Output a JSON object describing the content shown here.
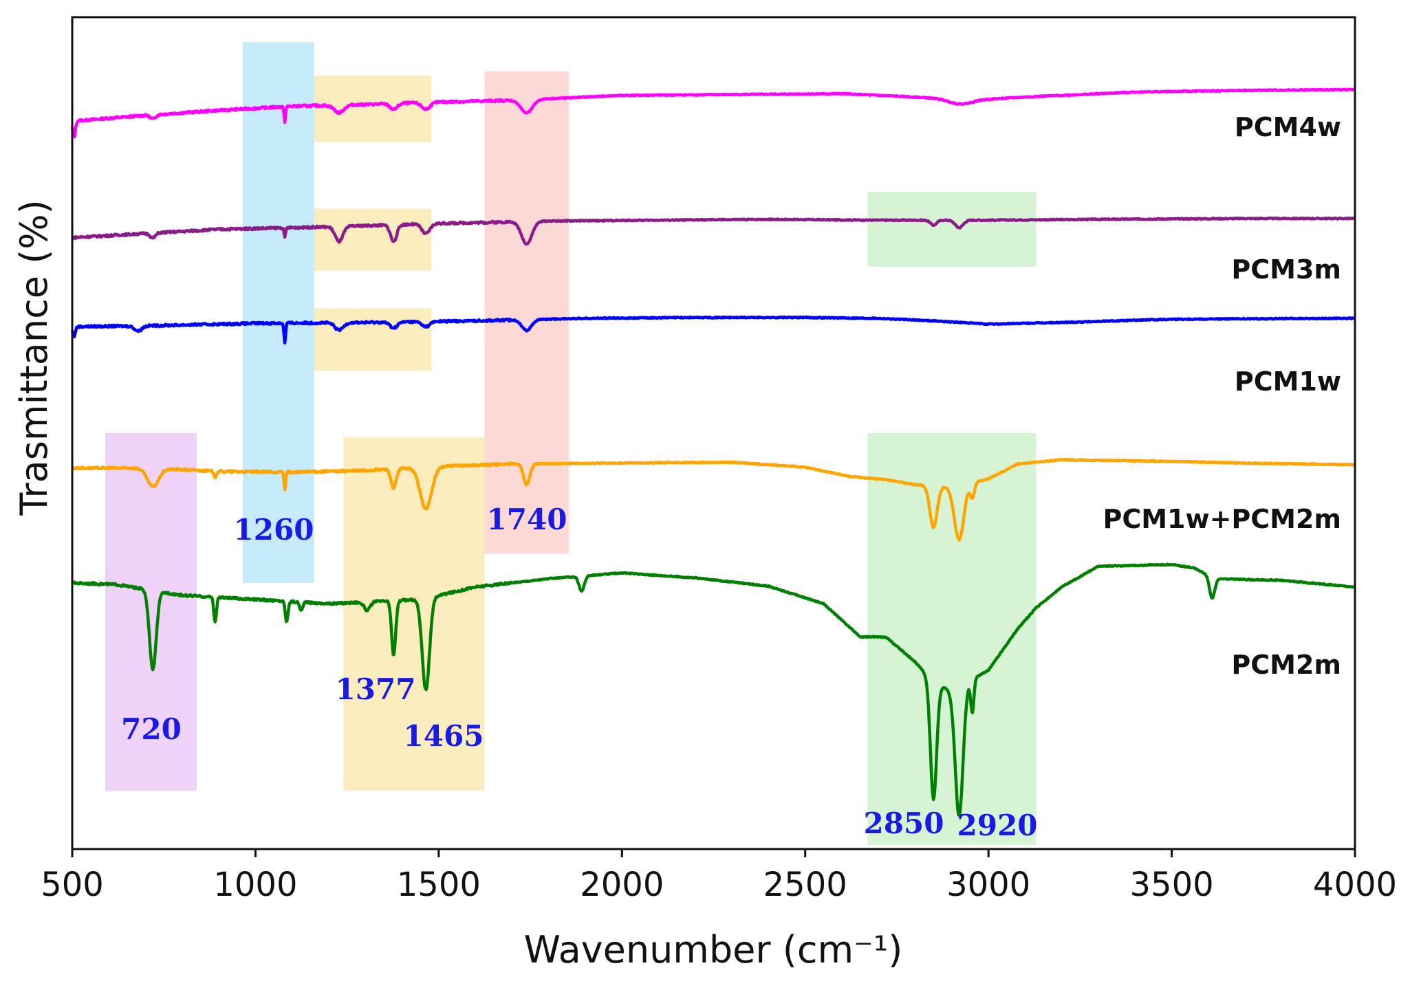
{
  "chart_data": {
    "type": "line",
    "title": "",
    "xlabel": "Wavenumber (cm⁻¹)",
    "ylabel": "Trasmittance (%)",
    "xlim": [
      500,
      4000
    ],
    "ylim": [
      0,
      100
    ],
    "xticks": [
      500,
      1000,
      1500,
      2000,
      2500,
      3000,
      3500,
      4000
    ],
    "yticks_shown": false,
    "grid": false,
    "legend": "series labels placed at right under each curve",
    "highlight_bands": [
      {
        "x": [
          590,
          840
        ],
        "y": [
          7,
          50
        ],
        "color": "#dc9cf0"
      },
      {
        "x": [
          965,
          1160
        ],
        "y": [
          32,
          97
        ],
        "color": "#7fd0f5"
      },
      {
        "x": [
          1160,
          1480
        ],
        "y": [
          85,
          93
        ],
        "color": "#f5d46c"
      },
      {
        "x": [
          1160,
          1480
        ],
        "y": [
          69.5,
          77
        ],
        "color": "#f5d46c"
      },
      {
        "x": [
          1160,
          1480
        ],
        "y": [
          57.5,
          65
        ],
        "color": "#f5d46c"
      },
      {
        "x": [
          1240,
          1625
        ],
        "y": [
          7,
          49.5
        ],
        "color": "#f5d46c"
      },
      {
        "x": [
          1625,
          1855
        ],
        "y": [
          35.5,
          93.5
        ],
        "color": "#fbaaa3"
      },
      {
        "x": [
          2670,
          3130
        ],
        "y": [
          70,
          79
        ],
        "color": "#a4e6a0"
      },
      {
        "x": [
          2670,
          3130
        ],
        "y": [
          0.5,
          50
        ],
        "color": "#a4e6a0"
      }
    ],
    "series": [
      {
        "name": "PCM4w",
        "color": "#ff00ff",
        "baseline": [
          [
            500,
            87.5
          ],
          [
            700,
            88.2
          ],
          [
            900,
            88.8
          ],
          [
            1100,
            89.3
          ],
          [
            1300,
            89.5
          ],
          [
            1500,
            89.8
          ],
          [
            1700,
            90.0
          ],
          [
            2000,
            90.6
          ],
          [
            2300,
            90.7
          ],
          [
            2600,
            90.8
          ],
          [
            2800,
            90.4
          ],
          [
            2950,
            90.0
          ],
          [
            3100,
            90.4
          ],
          [
            3400,
            91.0
          ],
          [
            3700,
            91.2
          ],
          [
            4000,
            91.3
          ]
        ],
        "peaks": [
          [
            505,
            2.0,
            5
          ],
          [
            720,
            0.5,
            10
          ],
          [
            1080,
            1.8,
            3
          ],
          [
            1228,
            0.9,
            18
          ],
          [
            1377,
            0.7,
            14
          ],
          [
            1465,
            0.8,
            16
          ],
          [
            1740,
            1.6,
            22
          ],
          [
            2920,
            0.5,
            40
          ]
        ]
      },
      {
        "name": "PCM3m",
        "color": "#8b1a8b",
        "baseline": [
          [
            500,
            73.5
          ],
          [
            700,
            74.0
          ],
          [
            900,
            74.5
          ],
          [
            1200,
            74.8
          ],
          [
            1500,
            75.2
          ],
          [
            1800,
            75.5
          ],
          [
            2100,
            75.6
          ],
          [
            2400,
            75.7
          ],
          [
            2700,
            75.6
          ],
          [
            3000,
            75.6
          ],
          [
            3300,
            75.7
          ],
          [
            3700,
            75.8
          ],
          [
            4000,
            75.8
          ]
        ],
        "peaks": [
          [
            720,
            0.6,
            10
          ],
          [
            1080,
            1.2,
            3
          ],
          [
            1228,
            1.8,
            15
          ],
          [
            1377,
            2.0,
            12
          ],
          [
            1465,
            1.2,
            15
          ],
          [
            1740,
            2.7,
            20
          ],
          [
            2850,
            0.6,
            12
          ],
          [
            2920,
            0.9,
            15
          ]
        ]
      },
      {
        "name": "PCM1w",
        "color": "#0000ff",
        "baseline": [
          [
            500,
            62.8
          ],
          [
            700,
            62.9
          ],
          [
            1000,
            63.2
          ],
          [
            1300,
            63.3
          ],
          [
            1600,
            63.5
          ],
          [
            1900,
            63.8
          ],
          [
            2200,
            63.9
          ],
          [
            2500,
            63.9
          ],
          [
            2700,
            63.8
          ],
          [
            2850,
            63.5
          ],
          [
            3000,
            63.1
          ],
          [
            3200,
            63.3
          ],
          [
            3500,
            63.7
          ],
          [
            4000,
            63.8
          ]
        ],
        "peaks": [
          [
            505,
            1.2,
            5
          ],
          [
            680,
            0.6,
            14
          ],
          [
            1080,
            2.4,
            3
          ],
          [
            1228,
            0.9,
            16
          ],
          [
            1377,
            0.7,
            14
          ],
          [
            1465,
            0.6,
            15
          ],
          [
            1740,
            1.3,
            18
          ]
        ]
      },
      {
        "name": "PCM1w+PCM2m",
        "color": "#ffa500",
        "baseline": [
          [
            500,
            45.8
          ],
          [
            700,
            45.8
          ],
          [
            900,
            45.4
          ],
          [
            1100,
            45.3
          ],
          [
            1300,
            45.5
          ],
          [
            1500,
            46.0
          ],
          [
            1700,
            46.3
          ],
          [
            2000,
            46.4
          ],
          [
            2300,
            46.5
          ],
          [
            2500,
            45.9
          ],
          [
            2620,
            44.8
          ],
          [
            2720,
            44.4
          ],
          [
            2800,
            43.8
          ],
          [
            2900,
            43.5
          ],
          [
            3000,
            44.5
          ],
          [
            3080,
            46.3
          ],
          [
            3200,
            46.8
          ],
          [
            3500,
            46.6
          ],
          [
            3700,
            46.4
          ],
          [
            4000,
            46.2
          ]
        ],
        "peaks": [
          [
            720,
            2.2,
            22
          ],
          [
            890,
            0.7,
            5
          ],
          [
            1080,
            2.1,
            3
          ],
          [
            1377,
            2.3,
            10
          ],
          [
            1465,
            5.0,
            22
          ],
          [
            1740,
            2.5,
            12
          ],
          [
            2850,
            5.0,
            14
          ],
          [
            2920,
            6.5,
            18
          ],
          [
            2956,
            1.8,
            8
          ]
        ]
      },
      {
        "name": "PCM2m",
        "color": "#008000",
        "baseline": [
          [
            500,
            32.0
          ],
          [
            620,
            31.8
          ],
          [
            800,
            30.5
          ],
          [
            1000,
            30.0
          ],
          [
            1200,
            29.5
          ],
          [
            1450,
            30.0
          ],
          [
            1600,
            31.5
          ],
          [
            1800,
            32.5
          ],
          [
            2000,
            33.2
          ],
          [
            2200,
            32.6
          ],
          [
            2400,
            31.6
          ],
          [
            2550,
            29.5
          ],
          [
            2650,
            25.5
          ],
          [
            2720,
            25.5
          ],
          [
            2800,
            22.5
          ],
          [
            2850,
            20.0
          ],
          [
            2900,
            19.0
          ],
          [
            3000,
            21.5
          ],
          [
            3080,
            26.5
          ],
          [
            3130,
            29.0
          ],
          [
            3200,
            31.5
          ],
          [
            3300,
            34.0
          ],
          [
            3500,
            34.2
          ],
          [
            3560,
            33.8
          ],
          [
            3620,
            32.5
          ],
          [
            3800,
            32.3
          ],
          [
            4000,
            31.5
          ]
        ],
        "peaks": [
          [
            720,
            9.5,
            13
          ],
          [
            890,
            3.0,
            5
          ],
          [
            1085,
            2.5,
            5
          ],
          [
            1125,
            1.0,
            6
          ],
          [
            1305,
            1.0,
            12
          ],
          [
            1377,
            6.5,
            8
          ],
          [
            1465,
            11.0,
            14
          ],
          [
            1890,
            1.8,
            10
          ],
          [
            2850,
            14.0,
            12
          ],
          [
            2920,
            15.5,
            15
          ],
          [
            2956,
            4.0,
            6
          ],
          [
            3610,
            2.5,
            10
          ]
        ]
      }
    ],
    "series_labels": [
      "PCM4w",
      "PCM3m",
      "PCM1w",
      "PCM1w+PCM2m",
      "PCM2m"
    ],
    "peak_annotations": [
      "720",
      "1260",
      "1377",
      "1465",
      "1740",
      "2850",
      "2920"
    ],
    "annotation_color": "#1a1ae6"
  }
}
